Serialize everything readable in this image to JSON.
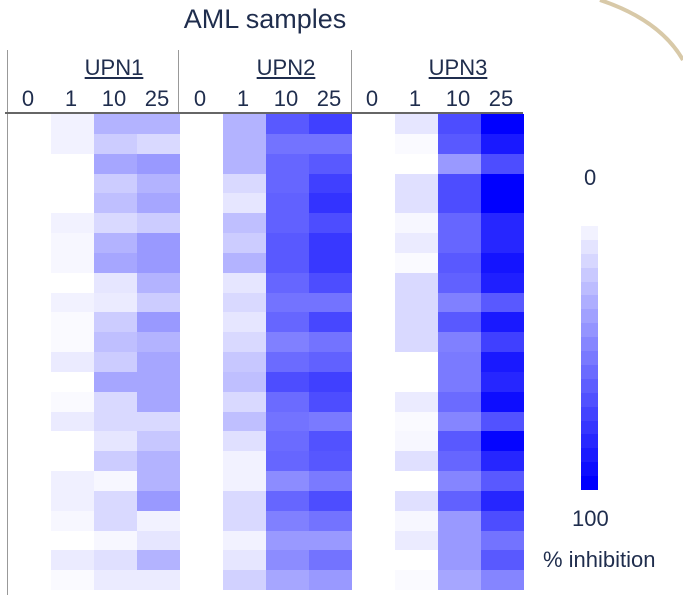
{
  "chart_data": {
    "type": "heatmap",
    "title": "AML samples",
    "groups": [
      "UPN1",
      "UPN2",
      "UPN3"
    ],
    "concentrations": [
      "0",
      "1",
      "10",
      "25"
    ],
    "colorscale": {
      "min": 0,
      "max": 100,
      "min_label": "0",
      "max_label": "100",
      "label": "% inhibition",
      "min_color": "#ffffff",
      "max_color": "#0000ff"
    },
    "values": [
      [
        0,
        5,
        30,
        30,
        0,
        30,
        65,
        75,
        0,
        10,
        70,
        100
      ],
      [
        0,
        5,
        20,
        15,
        0,
        30,
        55,
        55,
        0,
        2,
        65,
        90
      ],
      [
        0,
        0,
        35,
        40,
        0,
        30,
        60,
        65,
        0,
        0,
        40,
        70
      ],
      [
        0,
        0,
        20,
        30,
        0,
        15,
        60,
        75,
        0,
        12,
        70,
        100
      ],
      [
        0,
        0,
        25,
        35,
        0,
        10,
        62,
        80,
        0,
        12,
        70,
        100
      ],
      [
        0,
        5,
        15,
        20,
        0,
        25,
        62,
        70,
        0,
        3,
        60,
        85
      ],
      [
        0,
        3,
        30,
        40,
        0,
        20,
        65,
        78,
        0,
        8,
        60,
        85
      ],
      [
        0,
        3,
        35,
        40,
        0,
        30,
        65,
        78,
        0,
        2,
        65,
        92
      ],
      [
        0,
        0,
        10,
        30,
        0,
        10,
        60,
        70,
        0,
        15,
        62,
        88
      ],
      [
        0,
        5,
        8,
        20,
        0,
        15,
        55,
        55,
        0,
        15,
        50,
        65
      ],
      [
        0,
        2,
        20,
        40,
        0,
        10,
        60,
        72,
        0,
        15,
        65,
        90
      ],
      [
        0,
        2,
        25,
        30,
        0,
        15,
        50,
        55,
        0,
        15,
        50,
        75
      ],
      [
        0,
        8,
        20,
        35,
        0,
        22,
        58,
        62,
        0,
        0,
        52,
        90
      ],
      [
        0,
        0,
        35,
        35,
        0,
        25,
        70,
        75,
        0,
        0,
        52,
        85
      ],
      [
        0,
        2,
        15,
        35,
        0,
        15,
        58,
        70,
        0,
        8,
        58,
        95
      ],
      [
        0,
        8,
        15,
        15,
        0,
        25,
        55,
        52,
        0,
        2,
        48,
        68
      ],
      [
        0,
        0,
        10,
        22,
        0,
        12,
        58,
        68,
        0,
        3,
        65,
        98
      ],
      [
        0,
        0,
        20,
        30,
        0,
        5,
        60,
        66,
        0,
        12,
        60,
        85
      ],
      [
        0,
        6,
        3,
        30,
        0,
        5,
        45,
        52,
        0,
        0,
        48,
        65
      ],
      [
        0,
        6,
        15,
        40,
        0,
        15,
        60,
        70,
        0,
        12,
        62,
        85
      ],
      [
        0,
        3,
        15,
        5,
        0,
        15,
        50,
        55,
        0,
        3,
        40,
        70
      ],
      [
        0,
        0,
        3,
        10,
        0,
        5,
        40,
        40,
        0,
        8,
        40,
        55
      ],
      [
        0,
        8,
        12,
        30,
        0,
        10,
        45,
        55,
        0,
        0,
        40,
        65
      ],
      [
        0,
        2,
        8,
        8,
        0,
        18,
        35,
        40,
        0,
        2,
        35,
        48
      ]
    ]
  }
}
